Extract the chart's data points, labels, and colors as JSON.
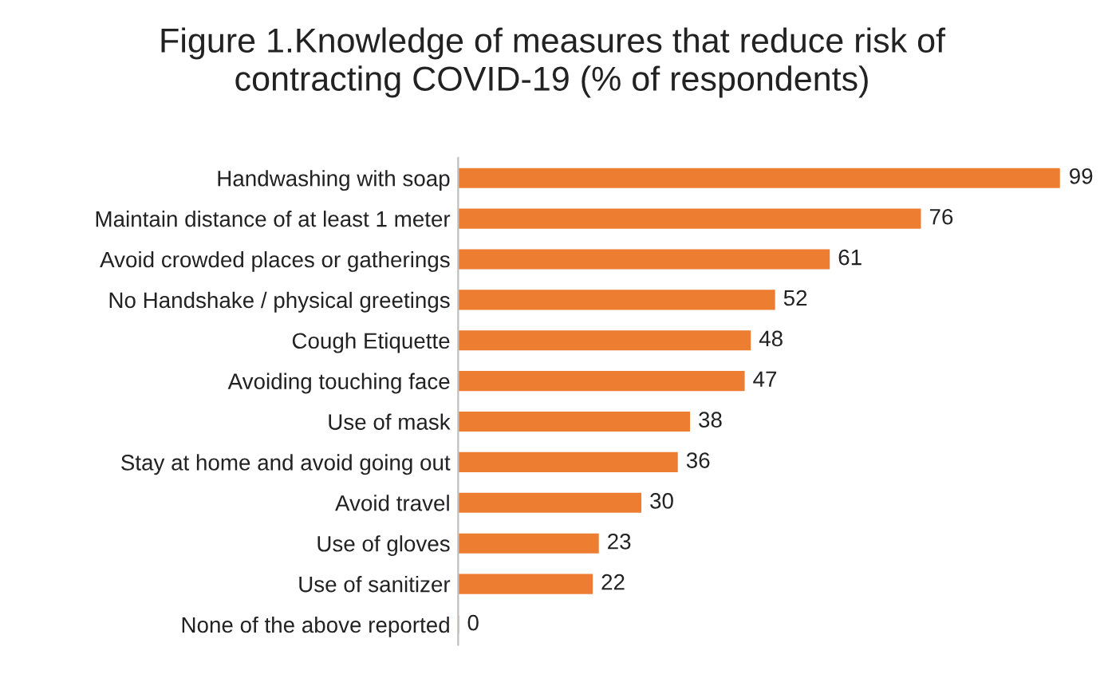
{
  "chart_data": {
    "type": "bar",
    "orientation": "horizontal",
    "title": "Figure 1.Knowledge of measures that reduce risk of\ncontracting COVID-19 (% of respondents)",
    "categories": [
      "Handwashing with soap",
      "Maintain distance of at least 1 meter",
      "Avoid crowded places or gatherings",
      "No Handshake / physical greetings",
      "Cough Etiquette",
      "Avoiding touching face",
      "Use of mask",
      "Stay at home and avoid going out",
      "Avoid travel",
      "Use of gloves",
      "Use of sanitizer",
      "None of the above reported"
    ],
    "values": [
      99,
      76,
      61,
      52,
      48,
      47,
      38,
      36,
      30,
      23,
      22,
      0
    ],
    "color": "#ed7d31",
    "data_labels": true,
    "tick_labels": "y",
    "grid": false
  }
}
